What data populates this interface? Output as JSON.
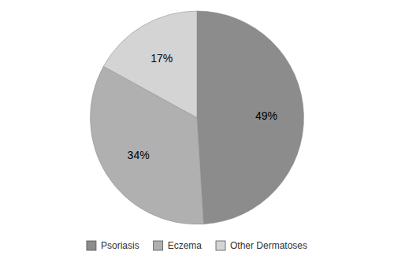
{
  "chart_data": {
    "type": "pie",
    "categories": [
      "Psoriasis",
      "Eczema",
      "Other Dermatoses"
    ],
    "values": [
      49,
      34,
      17
    ],
    "value_labels": [
      "49%",
      "34%",
      "17%"
    ],
    "colors": [
      "#8c8c8c",
      "#b0b0b0",
      "#d4d4d4"
    ],
    "data_labels": true,
    "legend": "bottom"
  }
}
